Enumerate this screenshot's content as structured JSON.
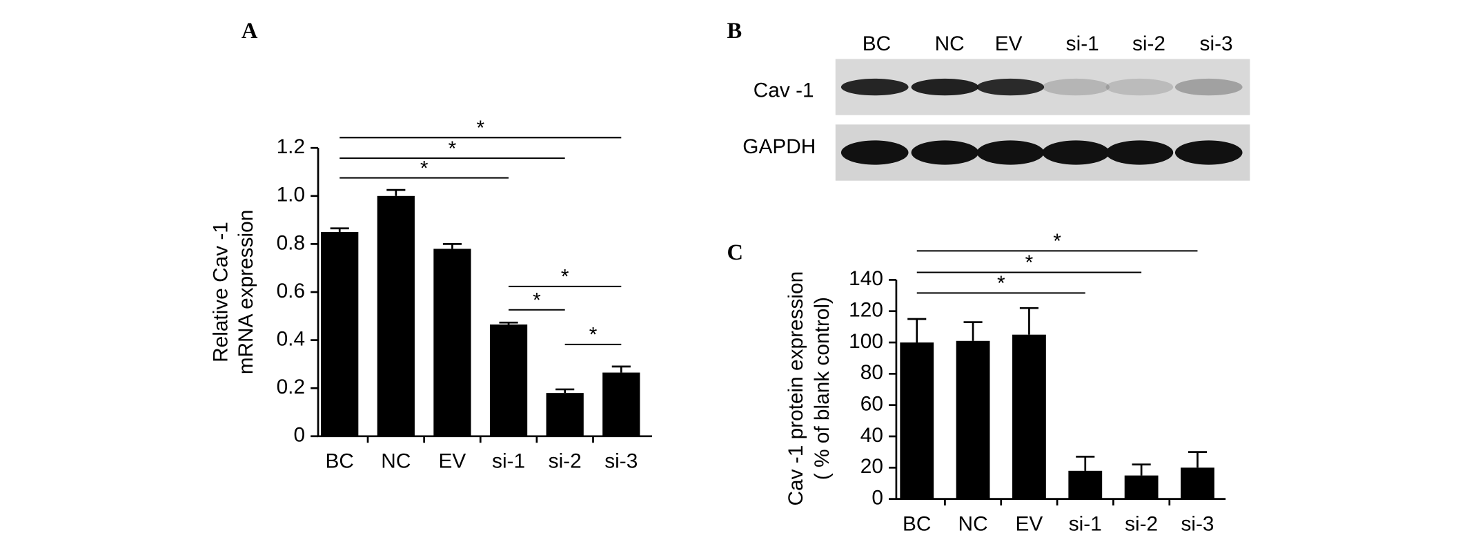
{
  "chart_data": [
    {
      "type": "bar",
      "panel": "A",
      "ylabel": [
        "Relative Cav -1",
        "mRNA expression"
      ],
      "categories": [
        "BC",
        "NC",
        "EV",
        "si-1",
        "si-2",
        "si-3"
      ],
      "values": [
        0.85,
        1.0,
        0.78,
        0.465,
        0.18,
        0.265
      ],
      "errors": [
        0.015,
        0.025,
        0.02,
        0.008,
        0.015,
        0.025
      ],
      "color": "#000000",
      "ylim": [
        0,
        1.2
      ],
      "yticks": [
        0,
        0.2,
        0.4,
        0.6,
        0.8,
        {
          "value": 1,
          "label": "1.0"
        },
        1.2
      ],
      "comparisons": [
        {
          "from": "BC",
          "to": "si-1",
          "label": "*"
        },
        {
          "from": "BC",
          "to": "si-2",
          "label": "*"
        },
        {
          "from": "BC",
          "to": "si-3",
          "label": "*"
        },
        {
          "from": "si-1",
          "to": "si-3",
          "label": "*"
        },
        {
          "from": "si-1",
          "to": "si-2",
          "label": "*"
        },
        {
          "from": "si-2",
          "to": "si-3",
          "label": "*"
        }
      ]
    },
    {
      "type": "bar",
      "panel": "C",
      "ylabel": [
        "Cav -1 protein expression",
        "( % of blank control)"
      ],
      "categories": [
        "BC",
        "NC",
        "EV",
        "si-1",
        "si-2",
        "si-3"
      ],
      "values": [
        100,
        101,
        105,
        18,
        15,
        20
      ],
      "errors": [
        15,
        12,
        17,
        9,
        7,
        10
      ],
      "color": "#000000",
      "ylim": [
        0,
        140
      ],
      "yticks": [
        0,
        20,
        40,
        60,
        80,
        100,
        120,
        140
      ],
      "comparisons": [
        {
          "from": "BC",
          "to": "si-1",
          "label": "*"
        },
        {
          "from": "BC",
          "to": "si-2",
          "label": "*"
        },
        {
          "from": "BC",
          "to": "si-3",
          "label": "*"
        }
      ]
    }
  ],
  "blot": {
    "panel": "B",
    "lanes": [
      "BC",
      "NC",
      "EV",
      "si-1",
      "si-2",
      "si-3"
    ],
    "rows": [
      "Cav -1",
      "GAPDH"
    ]
  }
}
